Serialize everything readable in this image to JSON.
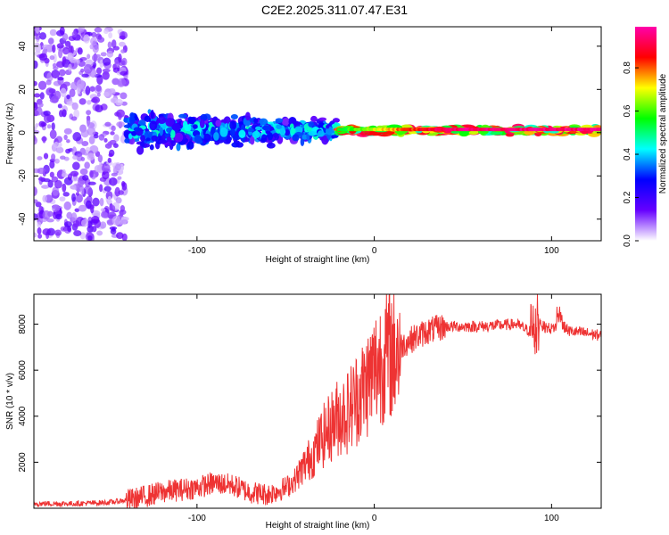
{
  "title": "C2E2.2025.311.07.47.E31",
  "chart_data": [
    {
      "type": "heatmap",
      "xlabel": "Height of straight line (km)",
      "ylabel": "Frequency (Hz)",
      "xlim": [
        -192,
        128
      ],
      "ylim": [
        -50,
        49
      ],
      "xticks": [
        -100,
        0,
        100
      ],
      "yticks": [
        -40,
        -20,
        0,
        20,
        40
      ],
      "colorbar": {
        "label": "Normalized spectral amplitude",
        "range": [
          0.0,
          0.99
        ],
        "ticks": [
          0.0,
          0.2,
          0.4,
          0.6,
          0.8
        ],
        "colormap": [
          "#ffffff",
          "#6600ff",
          "#0000ff",
          "#00ffff",
          "#00ff00",
          "#ffff00",
          "#ff0000",
          "#ff00aa"
        ]
      },
      "description_bands": [
        {
          "x_from": -192,
          "x_to": -140,
          "freq_spread": 49,
          "amplitude": 0.1
        },
        {
          "x_from": -140,
          "x_to": -20,
          "freq_spread": 8,
          "amplitude": 0.35
        },
        {
          "x_from": -20,
          "x_to": 128,
          "freq_spread": 2,
          "amplitude": 0.85
        }
      ]
    },
    {
      "type": "line",
      "xlabel": "Height of straight line (km)",
      "ylabel": "SNR (10 * v/v)",
      "xlim": [
        -192,
        128
      ],
      "ylim": [
        0,
        9300
      ],
      "xticks": [
        -100,
        0,
        100
      ],
      "yticks": [
        2000,
        4000,
        6000,
        8000
      ],
      "color": "#ee3333",
      "series": [
        {
          "name": "SNR",
          "x": [
            -192,
            -170,
            -150,
            -135,
            -120,
            -100,
            -90,
            -80,
            -70,
            -60,
            -50,
            -45,
            -40,
            -35,
            -30,
            -25,
            -20,
            -15,
            -10,
            -5,
            0,
            5,
            10,
            20,
            30,
            40,
            50,
            60,
            70,
            80,
            85,
            90,
            92,
            95,
            100,
            105,
            110,
            120,
            128
          ],
          "y": [
            200,
            200,
            250,
            400,
            700,
            900,
            1100,
            1000,
            700,
            600,
            900,
            1200,
            1800,
            2300,
            3000,
            3500,
            4000,
            4200,
            4800,
            5300,
            6000,
            6600,
            6800,
            7300,
            7700,
            7900,
            7900,
            7900,
            7950,
            8000,
            7800,
            7600,
            8400,
            7900,
            7800,
            8000,
            7700,
            7600,
            7500
          ]
        }
      ]
    }
  ]
}
